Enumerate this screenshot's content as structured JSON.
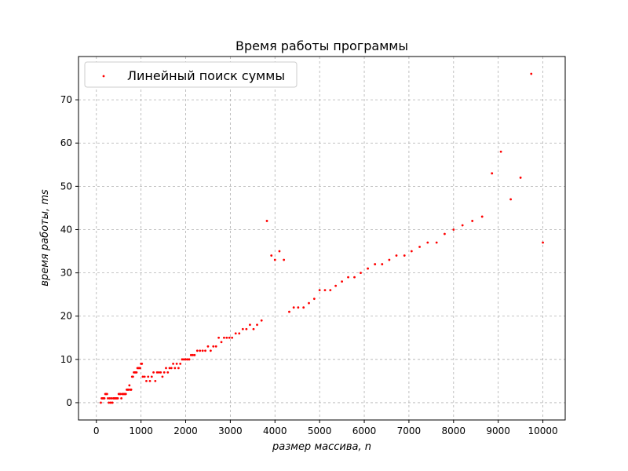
{
  "chart_data": {
    "type": "scatter",
    "title": "Время работы программы",
    "xlabel": "размер массива, n",
    "ylabel": "время работы, ms",
    "xlim": [
      -400,
      10500
    ],
    "ylim": [
      -4,
      80
    ],
    "xticks": [
      0,
      1000,
      2000,
      3000,
      4000,
      5000,
      6000,
      7000,
      8000,
      9000,
      10000
    ],
    "yticks": [
      0,
      10,
      20,
      30,
      40,
      50,
      60,
      70
    ],
    "grid": true,
    "legend_position": "top-left",
    "series": [
      {
        "name": "Линейный поиск суммы",
        "color": "#ff0000",
        "points": [
          [
            100,
            0
          ],
          [
            120,
            1
          ],
          [
            140,
            1
          ],
          [
            160,
            1
          ],
          [
            180,
            1
          ],
          [
            200,
            2
          ],
          [
            220,
            2
          ],
          [
            240,
            2
          ],
          [
            260,
            1
          ],
          [
            280,
            0
          ],
          [
            300,
            1
          ],
          [
            320,
            0
          ],
          [
            340,
            1
          ],
          [
            360,
            0
          ],
          [
            380,
            1
          ],
          [
            400,
            1
          ],
          [
            420,
            1
          ],
          [
            440,
            1
          ],
          [
            460,
            1
          ],
          [
            480,
            1
          ],
          [
            500,
            2
          ],
          [
            520,
            2
          ],
          [
            540,
            2
          ],
          [
            560,
            1
          ],
          [
            580,
            2
          ],
          [
            600,
            2
          ],
          [
            620,
            2
          ],
          [
            640,
            2
          ],
          [
            660,
            2
          ],
          [
            680,
            3
          ],
          [
            700,
            3
          ],
          [
            720,
            3
          ],
          [
            740,
            4
          ],
          [
            760,
            3
          ],
          [
            780,
            3
          ],
          [
            800,
            6
          ],
          [
            820,
            6
          ],
          [
            840,
            7
          ],
          [
            860,
            7
          ],
          [
            880,
            7
          ],
          [
            900,
            7
          ],
          [
            920,
            8
          ],
          [
            940,
            8
          ],
          [
            960,
            8
          ],
          [
            980,
            8
          ],
          [
            1000,
            9
          ],
          [
            1020,
            9
          ],
          [
            1040,
            6
          ],
          [
            1080,
            6
          ],
          [
            1120,
            5
          ],
          [
            1160,
            6
          ],
          [
            1200,
            5
          ],
          [
            1240,
            6
          ],
          [
            1280,
            7
          ],
          [
            1320,
            5
          ],
          [
            1360,
            7
          ],
          [
            1400,
            7
          ],
          [
            1440,
            7
          ],
          [
            1480,
            6
          ],
          [
            1520,
            7
          ],
          [
            1560,
            8
          ],
          [
            1600,
            7
          ],
          [
            1640,
            8
          ],
          [
            1680,
            8
          ],
          [
            1720,
            9
          ],
          [
            1760,
            8
          ],
          [
            1800,
            9
          ],
          [
            1840,
            8
          ],
          [
            1880,
            9
          ],
          [
            1920,
            10
          ],
          [
            1960,
            10
          ],
          [
            2000,
            10
          ],
          [
            2040,
            10
          ],
          [
            2080,
            10
          ],
          [
            2120,
            11
          ],
          [
            2160,
            11
          ],
          [
            2200,
            11
          ],
          [
            2260,
            12
          ],
          [
            2320,
            12
          ],
          [
            2380,
            12
          ],
          [
            2440,
            12
          ],
          [
            2500,
            13
          ],
          [
            2560,
            12
          ],
          [
            2620,
            13
          ],
          [
            2680,
            13
          ],
          [
            2740,
            15
          ],
          [
            2800,
            14
          ],
          [
            2860,
            15
          ],
          [
            2920,
            15
          ],
          [
            2980,
            15
          ],
          [
            3040,
            15
          ],
          [
            3120,
            16
          ],
          [
            3200,
            16
          ],
          [
            3280,
            17
          ],
          [
            3360,
            17
          ],
          [
            3440,
            18
          ],
          [
            3520,
            17
          ],
          [
            3600,
            18
          ],
          [
            3700,
            19
          ],
          [
            3820,
            42
          ],
          [
            3920,
            34
          ],
          [
            4000,
            33
          ],
          [
            4100,
            35
          ],
          [
            4200,
            33
          ],
          [
            4320,
            21
          ],
          [
            4420,
            22
          ],
          [
            4520,
            22
          ],
          [
            4640,
            22
          ],
          [
            4760,
            23
          ],
          [
            4880,
            24
          ],
          [
            5000,
            26
          ],
          [
            5120,
            26
          ],
          [
            5240,
            26
          ],
          [
            5360,
            27
          ],
          [
            5500,
            28
          ],
          [
            5640,
            29
          ],
          [
            5780,
            29
          ],
          [
            5920,
            30
          ],
          [
            6080,
            31
          ],
          [
            6240,
            32
          ],
          [
            6400,
            32
          ],
          [
            6560,
            33
          ],
          [
            6720,
            34
          ],
          [
            6900,
            34
          ],
          [
            7060,
            35
          ],
          [
            7240,
            36
          ],
          [
            7420,
            37
          ],
          [
            7620,
            37
          ],
          [
            7800,
            39
          ],
          [
            8000,
            40
          ],
          [
            8200,
            41
          ],
          [
            8420,
            42
          ],
          [
            8640,
            43
          ],
          [
            8860,
            53
          ],
          [
            9060,
            58
          ],
          [
            9280,
            47
          ],
          [
            9500,
            52
          ],
          [
            9740,
            76
          ],
          [
            10000,
            37
          ]
        ]
      }
    ]
  }
}
